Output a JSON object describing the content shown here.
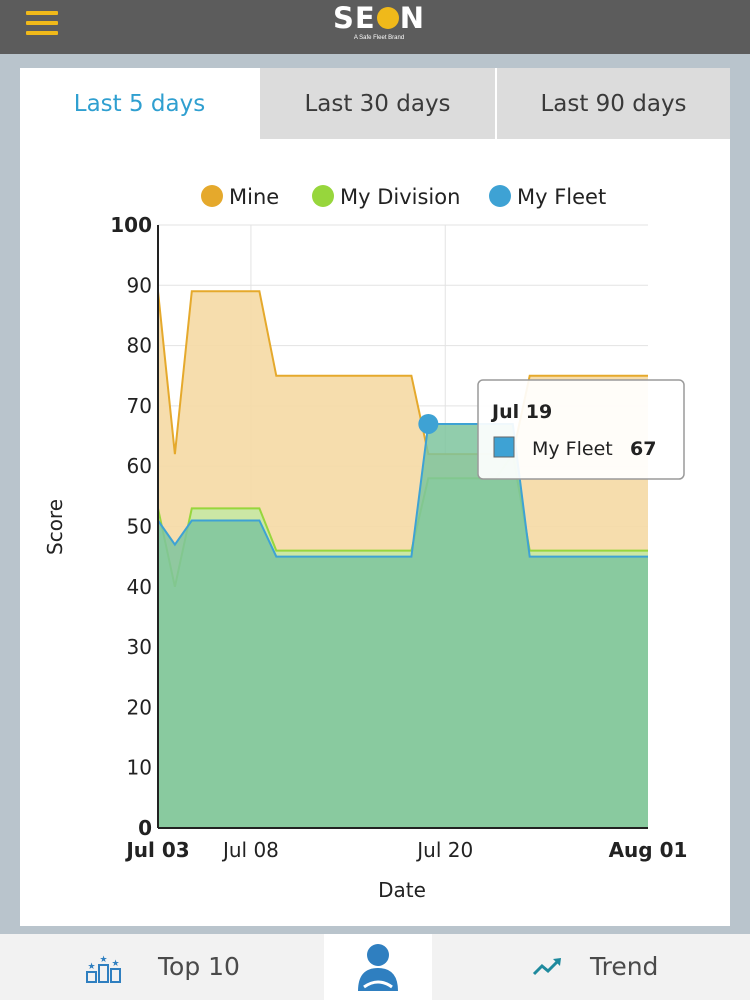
{
  "header": {
    "logo_pre": "SE",
    "logo_post": "N",
    "logo_subtitle": "A Safe Fleet Brand"
  },
  "tabs": [
    {
      "label": "Last 5 days",
      "active": true
    },
    {
      "label": "Last  30 days",
      "active": false
    },
    {
      "label": "Last 90 days",
      "active": false
    }
  ],
  "chart_data": {
    "type": "area",
    "xlabel": "Date",
    "ylabel": "Score",
    "ylim": [
      0,
      100
    ],
    "xlim": [
      3,
      32
    ],
    "grid": true,
    "legend_position": "top",
    "yticks": [
      0,
      10,
      20,
      30,
      40,
      50,
      60,
      70,
      80,
      90,
      100
    ],
    "xticks": [
      {
        "label": "Jul 03",
        "day": 3,
        "bold": true
      },
      {
        "label": "Jul 08",
        "day": 8.5,
        "bold": false
      },
      {
        "label": "Jul 20",
        "day": 20,
        "bold": false
      },
      {
        "label": "Aug 01",
        "day": 32,
        "bold": true
      }
    ],
    "series": [
      {
        "name": "Mine",
        "color": "#e5a92c",
        "fill": "#f5d9a4",
        "points": [
          [
            3,
            89
          ],
          [
            4,
            62
          ],
          [
            5,
            89
          ],
          [
            9,
            89
          ],
          [
            10,
            75
          ],
          [
            18,
            75
          ],
          [
            19,
            62
          ],
          [
            20,
            62
          ],
          [
            23,
            62
          ],
          [
            24,
            62
          ],
          [
            25,
            75
          ],
          [
            32,
            75
          ]
        ]
      },
      {
        "name": "My Division",
        "color": "#97d63c",
        "fill": "#c7e8a4",
        "points": [
          [
            3,
            53
          ],
          [
            4,
            40
          ],
          [
            5,
            53
          ],
          [
            9,
            53
          ],
          [
            10,
            46
          ],
          [
            18,
            46
          ],
          [
            19,
            58
          ],
          [
            20,
            58
          ],
          [
            23,
            58
          ],
          [
            24,
            62
          ],
          [
            25,
            46
          ],
          [
            32,
            46
          ]
        ]
      },
      {
        "name": "My Fleet",
        "color": "#3ea2d4",
        "fill": "#7ec49e",
        "points": [
          [
            3,
            51
          ],
          [
            4,
            47
          ],
          [
            5,
            51
          ],
          [
            9,
            51
          ],
          [
            10,
            45
          ],
          [
            18,
            45
          ],
          [
            19,
            67
          ],
          [
            20,
            67
          ],
          [
            23,
            67
          ],
          [
            24,
            67
          ],
          [
            25,
            45
          ],
          [
            32,
            45
          ]
        ]
      }
    ],
    "tooltip": {
      "date": "Jul 19",
      "series": "My Fleet",
      "value": 67,
      "day": 19
    }
  },
  "bottom_nav": {
    "top10_label": "Top 10",
    "trend_label": "Trend"
  },
  "colors": {
    "accent": "#f0b91a",
    "active_tab": "#2f9fd0"
  }
}
